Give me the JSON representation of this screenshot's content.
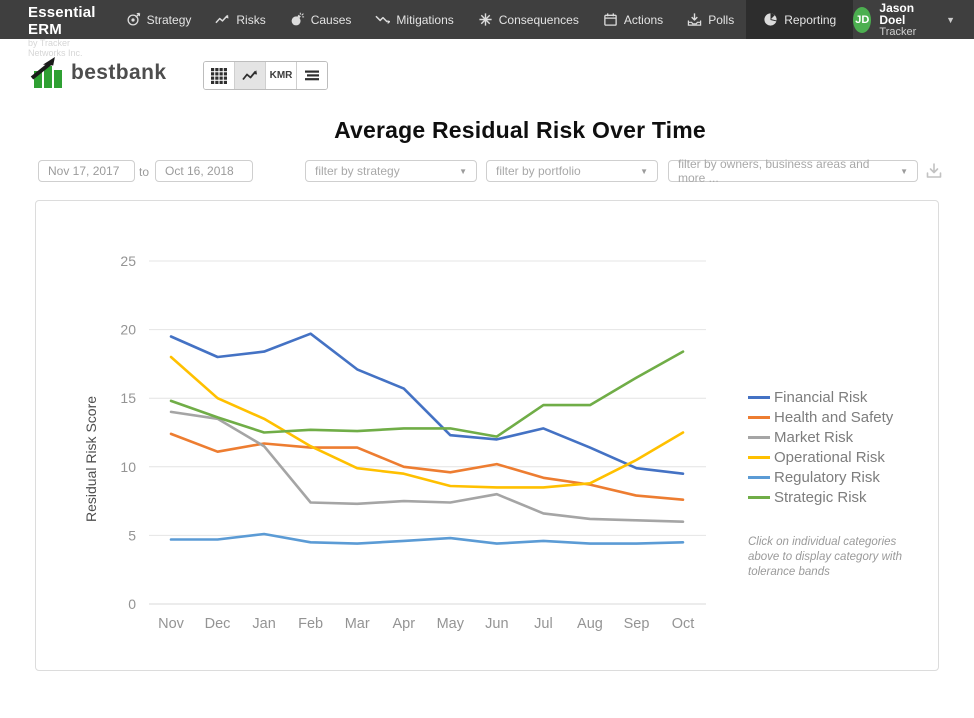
{
  "topnav": {
    "brand_title": "Essential ERM",
    "brand_subtitle": "by Tracker Networks Inc.",
    "items": [
      {
        "label": "Strategy",
        "icon": "target-icon",
        "active": false
      },
      {
        "label": "Risks",
        "icon": "trend-up-icon",
        "active": false
      },
      {
        "label": "Causes",
        "icon": "bomb-icon",
        "active": false
      },
      {
        "label": "Mitigations",
        "icon": "zigzag-down-icon",
        "active": false
      },
      {
        "label": "Consequences",
        "icon": "burst-icon",
        "active": false
      },
      {
        "label": "Actions",
        "icon": "calendar-icon",
        "active": false
      },
      {
        "label": "Polls",
        "icon": "inbox-icon",
        "active": false
      },
      {
        "label": "Reporting",
        "icon": "pie-chart-icon",
        "active": true
      }
    ],
    "user": {
      "initials": "JD",
      "name": "Jason Doel",
      "org": "Tracker",
      "avatar_color": "#4caf50"
    }
  },
  "logo": {
    "text": "bestbank",
    "bar_color": "#2fa033"
  },
  "toolbar": {
    "buttons": [
      {
        "name": "grid-view",
        "icon": "grid-icon",
        "label": "",
        "active": false
      },
      {
        "name": "line-chart-view",
        "icon": "line-chart-icon",
        "label": "",
        "active": true
      },
      {
        "name": "kmr-view",
        "icon": "",
        "label": "KMR",
        "active": false
      },
      {
        "name": "list-view",
        "icon": "list-icon",
        "label": "",
        "active": false
      }
    ]
  },
  "page_title": "Average Residual Risk Over Time",
  "filters": {
    "date_from": "Nov 17, 2017",
    "to_label": "to",
    "date_to": "Oct 16, 2018",
    "strategy_placeholder": "filter by strategy",
    "portfolio_placeholder": "filter by portfolio",
    "owners_placeholder": "filter by owners, business areas and more ...",
    "caret": "▼"
  },
  "chart_data": {
    "type": "line",
    "title": "Average Residual Risk Over Time",
    "xlabel": "",
    "ylabel": "Residual Risk Score",
    "ylim": [
      0,
      25
    ],
    "yticks": [
      0,
      5,
      10,
      15,
      20,
      25
    ],
    "grid": true,
    "legend_position": "right",
    "categories": [
      "Nov",
      "Dec",
      "Jan",
      "Feb",
      "Mar",
      "Apr",
      "May",
      "Jun",
      "Jul",
      "Aug",
      "Sep",
      "Oct"
    ],
    "series": [
      {
        "name": "Financial Risk",
        "color": "#4472C4",
        "values": [
          19.5,
          18.0,
          18.4,
          19.7,
          17.1,
          15.7,
          12.3,
          12.0,
          12.8,
          11.4,
          9.9,
          9.5
        ]
      },
      {
        "name": "Health and Safety",
        "color": "#ED7D31",
        "values": [
          12.4,
          11.1,
          11.7,
          11.4,
          11.4,
          10.0,
          9.6,
          10.2,
          9.2,
          8.7,
          7.9,
          7.6
        ]
      },
      {
        "name": "Market Risk",
        "color": "#A5A5A5",
        "values": [
          14.0,
          13.5,
          11.5,
          7.4,
          7.3,
          7.5,
          7.4,
          8.0,
          6.6,
          6.2,
          6.1,
          6.0
        ]
      },
      {
        "name": "Operational Risk",
        "color": "#FFC000",
        "values": [
          18.0,
          15.0,
          13.5,
          11.5,
          9.9,
          9.5,
          8.6,
          8.5,
          8.5,
          8.8,
          10.5,
          12.5
        ]
      },
      {
        "name": "Regulatory Risk",
        "color": "#5B9BD5",
        "values": [
          4.7,
          4.7,
          5.1,
          4.5,
          4.4,
          4.6,
          4.8,
          4.4,
          4.6,
          4.4,
          4.4,
          4.5
        ]
      },
      {
        "name": "Strategic Risk",
        "color": "#70AD47",
        "values": [
          14.8,
          13.6,
          12.5,
          12.7,
          12.6,
          12.8,
          12.8,
          12.2,
          14.5,
          14.5,
          16.5,
          18.4
        ]
      }
    ],
    "note": "Click on individual categories above to display category with tolerance bands"
  }
}
